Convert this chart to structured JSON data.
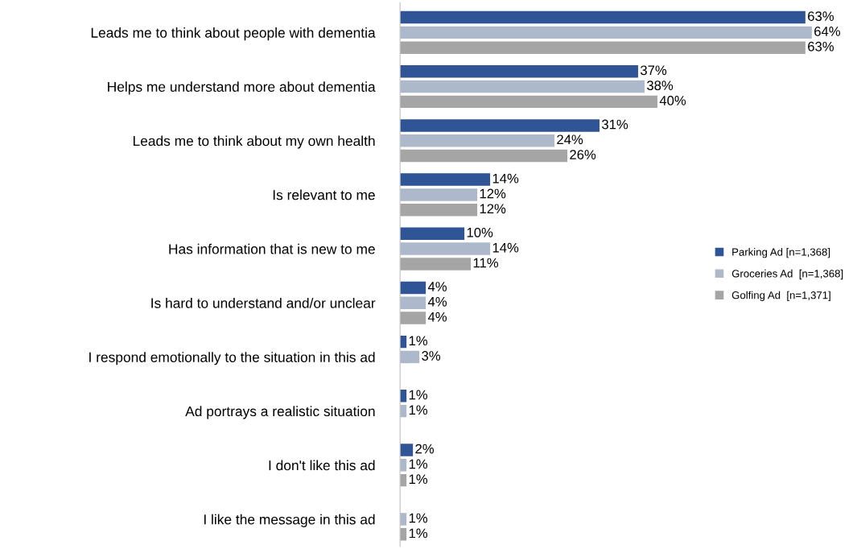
{
  "chart_data": {
    "type": "bar",
    "orientation": "horizontal",
    "legend": "right",
    "grid": false,
    "categories": [
      "Leads me to think about people with dementia",
      "Helps me understand more about dementia",
      "Leads me to think about my own health",
      "Is relevant to me",
      "Has information that is new to me",
      "Is hard to understand and/or unclear",
      "I respond emotionally to the situation in this ad",
      "Ad portrays a realistic situation",
      "I don't like this ad",
      "I like the message in this ad"
    ],
    "series": [
      {
        "name": "Parking Ad [n=1,368]",
        "color": "#2f5597",
        "values": [
          63,
          37,
          31,
          14,
          10,
          4,
          1,
          1,
          2,
          null
        ],
        "value_labels": [
          "63%",
          "37%",
          "31%",
          "14%",
          "10%",
          "4%",
          "1%",
          "1%",
          "2%",
          null
        ]
      },
      {
        "name": "Groceries Ad  [n=1,368]",
        "color": "#adb9ca",
        "values": [
          64,
          38,
          24,
          12,
          14,
          4,
          3,
          1,
          1,
          1
        ],
        "value_labels": [
          "64%",
          "38%",
          "24%",
          "12%",
          "14%",
          "4%",
          "3%",
          "1%",
          "1%",
          "1%"
        ]
      },
      {
        "name": "Golfing Ad  [n=1,371]",
        "color": "#a5a5a5",
        "values": [
          63,
          40,
          26,
          12,
          11,
          4,
          null,
          null,
          1,
          1
        ],
        "value_labels": [
          "63%",
          "40%",
          "26%",
          "12%",
          "11%",
          "4%",
          null,
          null,
          "1%",
          "1%"
        ]
      }
    ]
  }
}
